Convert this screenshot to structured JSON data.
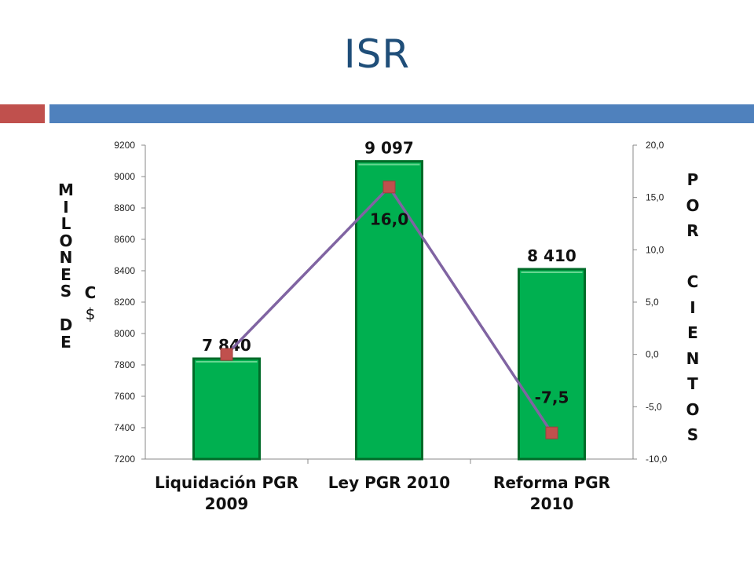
{
  "slide": {
    "title": "ISR"
  },
  "colors": {
    "title": "#1f4e79",
    "accent_red": "#c0504d",
    "accent_blue": "#4f81bd",
    "bar_fill": "#00b050",
    "bar_edge": "#006b28",
    "line": "#8064a2",
    "marker": "#c0504d"
  },
  "chart_data": {
    "type": "bar",
    "categories": [
      "Liquidación PGR 2009",
      "Ley PGR 2010",
      "Reforma PGR 2010"
    ],
    "category_lines": [
      [
        "Liquidación PGR",
        "2009"
      ],
      [
        "Ley PGR 2010"
      ],
      [
        "Reforma PGR",
        "2010"
      ]
    ],
    "series": [
      {
        "type": "bar",
        "axis": "left",
        "values": [
          7840,
          9097,
          8410
        ],
        "data_labels": [
          "7 840",
          "9 097",
          "8 410"
        ]
      },
      {
        "type": "line",
        "axis": "right",
        "values": [
          0.0,
          16.0,
          -7.5
        ],
        "data_labels": [
          "",
          "16,0",
          "-7,5"
        ]
      }
    ],
    "y_left": {
      "min": 7200,
      "max": 9200,
      "ticks": [
        9200,
        9000,
        8800,
        8600,
        8400,
        8200,
        8000,
        7800,
        7600,
        7400,
        7200
      ],
      "tick_labels": [
        "9200",
        "9000",
        "8800",
        "8600",
        "8400",
        "8200",
        "8000",
        "7800",
        "7600",
        "7400",
        "7200"
      ],
      "title_words": [
        "MILLONES",
        "DE"
      ],
      "title_lines": [
        "M",
        "I",
        "L",
        "O",
        "N",
        "E",
        "S",
        "",
        "D",
        "E"
      ],
      "unit_lines": [
        "C",
        "$"
      ]
    },
    "y_right": {
      "min": -10,
      "max": 20,
      "ticks": [
        20,
        15,
        10,
        5,
        0,
        -5,
        -10
      ],
      "tick_labels": [
        "20,0",
        "15,0",
        "10,0",
        "5,0",
        "0,0",
        "-5,0",
        "-10,0"
      ],
      "title_lines": [
        "P",
        "O",
        "R",
        "",
        "C",
        "I",
        "E",
        "N",
        "T",
        "O",
        "S"
      ]
    },
    "grid": false,
    "legend": "none"
  }
}
